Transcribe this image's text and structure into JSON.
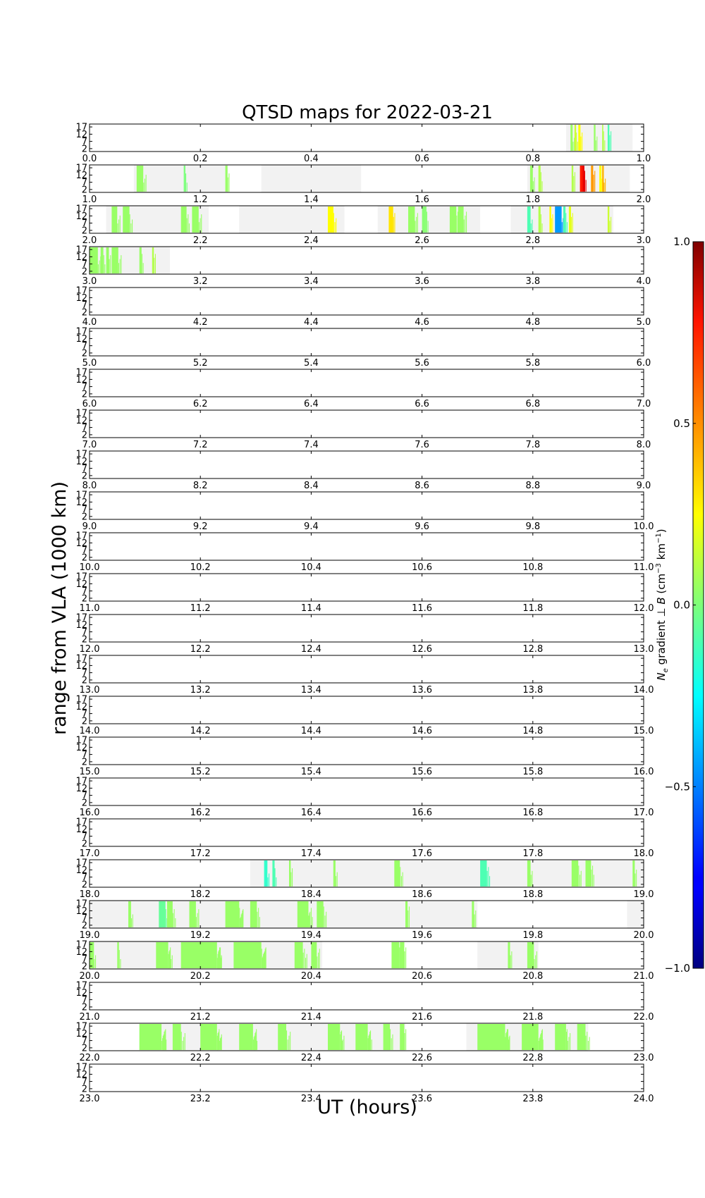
{
  "chart_data": {
    "type": "heatmap",
    "title": "QTSD maps for 2022-03-21",
    "xlabel": "UT (hours)",
    "ylabel": "range from VLA (1000 km)",
    "y_ticks": [
      "2",
      "7",
      "12",
      "17"
    ],
    "ylim": [
      0,
      19
    ],
    "x_ticks_per_panel": [
      0.0,
      0.2,
      0.4,
      0.6,
      0.8,
      1.0
    ],
    "x_tick_decimals": 1,
    "colorbar": {
      "label": "N_e gradient ⊥ B (cm⁻³ km⁻¹)",
      "label_parts": {
        "var": "N",
        "sub": "e",
        "mid": " gradient ⊥ ",
        "vec": "B",
        "unit_open": " (cm",
        "exp1": "−3",
        "unit_mid": " km",
        "exp2": "−1",
        "unit_close": ")"
      },
      "ticks": [
        "1.0",
        "0.5",
        "0.0",
        "−0.5",
        "−1.0"
      ],
      "tick_values": [
        1.0,
        0.5,
        0.0,
        -0.5,
        -1.0
      ],
      "range": [
        -1,
        1
      ],
      "colormap": "jet"
    },
    "colors": {
      "coverage": "#f2f2f2",
      "frame": "#000000"
    },
    "panels": [
      {
        "hour": 0,
        "coverage": [
          [
            0.86,
            0.98
          ]
        ],
        "features": [
          [
            0.868,
            0.004,
            0.05
          ],
          [
            0.875,
            0.003,
            0.15
          ],
          [
            0.882,
            0.004,
            0.25
          ],
          [
            0.91,
            0.003,
            0.05
          ],
          [
            0.925,
            0.002,
            0.1
          ],
          [
            0.935,
            0.003,
            -0.1
          ]
        ]
      },
      {
        "hour": 1,
        "coverage": [
          [
            0.08,
            0.25
          ],
          [
            0.31,
            0.49
          ],
          [
            0.79,
            0.975
          ]
        ],
        "features": [
          [
            0.085,
            0.012,
            0.05
          ],
          [
            0.17,
            0.003,
            0.0
          ],
          [
            0.245,
            0.004,
            0.05
          ],
          [
            0.795,
            0.005,
            0.05
          ],
          [
            0.81,
            0.004,
            0.1
          ],
          [
            0.87,
            0.003,
            0.1
          ],
          [
            0.885,
            0.005,
            0.7
          ],
          [
            0.89,
            0.003,
            0.8
          ],
          [
            0.905,
            0.004,
            0.45
          ],
          [
            0.92,
            0.004,
            0.25
          ],
          [
            0.925,
            0.003,
            0.4
          ]
        ]
      },
      {
        "hour": 2,
        "coverage": [
          [
            0.03,
            0.215
          ],
          [
            0.27,
            0.46
          ],
          [
            0.52,
            0.705
          ],
          [
            0.76,
            0.945
          ]
        ],
        "features": [
          [
            0.04,
            0.01,
            0.05
          ],
          [
            0.06,
            0.012,
            0.05
          ],
          [
            0.165,
            0.01,
            0.05
          ],
          [
            0.185,
            0.012,
            0.05
          ],
          [
            0.43,
            0.01,
            0.25
          ],
          [
            0.54,
            0.008,
            0.3
          ],
          [
            0.575,
            0.012,
            0.05
          ],
          [
            0.6,
            0.008,
            0.02
          ],
          [
            0.65,
            0.012,
            0.05
          ],
          [
            0.665,
            0.01,
            0.05
          ],
          [
            0.79,
            0.006,
            -0.1
          ],
          [
            0.81,
            0.004,
            0.1
          ],
          [
            0.83,
            0.003,
            0.25
          ],
          [
            0.84,
            0.012,
            -0.45
          ],
          [
            0.855,
            0.004,
            -0.1
          ],
          [
            0.865,
            0.004,
            0.2
          ],
          [
            0.935,
            0.003,
            0.15
          ]
        ]
      },
      {
        "hour": 3,
        "coverage": [
          [
            0.0,
            0.145
          ]
        ],
        "features": [
          [
            0.0,
            0.015,
            0.05
          ],
          [
            0.02,
            0.005,
            0.05
          ],
          [
            0.03,
            0.005,
            0.05
          ],
          [
            0.04,
            0.012,
            0.05
          ],
          [
            0.09,
            0.004,
            0.05
          ],
          [
            0.113,
            0.003,
            0.1
          ]
        ]
      },
      {
        "hour": 4,
        "coverage": [],
        "features": []
      },
      {
        "hour": 5,
        "coverage": [],
        "features": []
      },
      {
        "hour": 6,
        "coverage": [],
        "features": []
      },
      {
        "hour": 7,
        "coverage": [],
        "features": []
      },
      {
        "hour": 8,
        "coverage": [],
        "features": []
      },
      {
        "hour": 9,
        "coverage": [],
        "features": []
      },
      {
        "hour": 10,
        "coverage": [],
        "features": []
      },
      {
        "hour": 11,
        "coverage": [],
        "features": []
      },
      {
        "hour": 12,
        "coverage": [],
        "features": []
      },
      {
        "hour": 13,
        "coverage": [],
        "features": []
      },
      {
        "hour": 14,
        "coverage": [],
        "features": []
      },
      {
        "hour": 15,
        "coverage": [],
        "features": []
      },
      {
        "hour": 16,
        "coverage": [],
        "features": []
      },
      {
        "hour": 17,
        "coverage": [],
        "features": []
      },
      {
        "hour": 18,
        "coverage": [
          [
            0.29,
            1.0
          ]
        ],
        "features": [
          [
            0.315,
            0.006,
            -0.15
          ],
          [
            0.33,
            0.004,
            -0.1
          ],
          [
            0.36,
            0.003,
            0.05
          ],
          [
            0.44,
            0.004,
            0.05
          ],
          [
            0.55,
            0.01,
            0.05
          ],
          [
            0.705,
            0.012,
            -0.1
          ],
          [
            0.79,
            0.006,
            0.05
          ],
          [
            0.87,
            0.012,
            0.05
          ],
          [
            0.895,
            0.01,
            0.05
          ],
          [
            0.98,
            0.004,
            0.05
          ]
        ]
      },
      {
        "hour": 19,
        "coverage": [
          [
            0.0,
            0.7
          ],
          [
            0.97,
            1.0
          ]
        ],
        "features": [
          [
            0.07,
            0.005,
            0.05
          ],
          [
            0.125,
            0.012,
            -0.05
          ],
          [
            0.14,
            0.01,
            0.05
          ],
          [
            0.18,
            0.012,
            0.05
          ],
          [
            0.245,
            0.025,
            0.05
          ],
          [
            0.29,
            0.012,
            0.05
          ],
          [
            0.375,
            0.02,
            0.05
          ],
          [
            0.41,
            0.012,
            0.05
          ],
          [
            0.57,
            0.004,
            0.05
          ],
          [
            0.69,
            0.004,
            0.05
          ]
        ]
      },
      {
        "hour": 20,
        "coverage": [
          [
            0.0,
            0.42
          ],
          [
            0.7,
            0.81
          ]
        ],
        "features": [
          [
            0.0,
            0.008,
            0.05
          ],
          [
            0.05,
            0.003,
            0.05
          ],
          [
            0.12,
            0.022,
            0.05
          ],
          [
            0.165,
            0.065,
            0.05
          ],
          [
            0.26,
            0.05,
            0.05
          ],
          [
            0.37,
            0.015,
            0.05
          ],
          [
            0.4,
            0.01,
            0.05
          ],
          [
            0.545,
            0.014,
            0.05
          ],
          [
            0.56,
            0.008,
            0.05
          ],
          [
            0.755,
            0.004,
            0.05
          ],
          [
            0.79,
            0.012,
            0.05
          ]
        ]
      },
      {
        "hour": 21,
        "coverage": [],
        "features": []
      },
      {
        "hour": 22,
        "coverage": [
          [
            0.09,
            0.57
          ],
          [
            0.68,
            0.9
          ]
        ],
        "features": [
          [
            0.09,
            0.04,
            0.05
          ],
          [
            0.15,
            0.015,
            0.05
          ],
          [
            0.2,
            0.03,
            0.05
          ],
          [
            0.27,
            0.025,
            0.05
          ],
          [
            0.34,
            0.015,
            0.05
          ],
          [
            0.43,
            0.022,
            0.05
          ],
          [
            0.48,
            0.022,
            0.05
          ],
          [
            0.53,
            0.012,
            0.05
          ],
          [
            0.56,
            0.008,
            0.05
          ],
          [
            0.7,
            0.05,
            0.05
          ],
          [
            0.78,
            0.03,
            0.05
          ],
          [
            0.84,
            0.02,
            0.05
          ],
          [
            0.88,
            0.015,
            0.05
          ]
        ]
      },
      {
        "hour": 23,
        "coverage": [],
        "features": []
      }
    ]
  }
}
